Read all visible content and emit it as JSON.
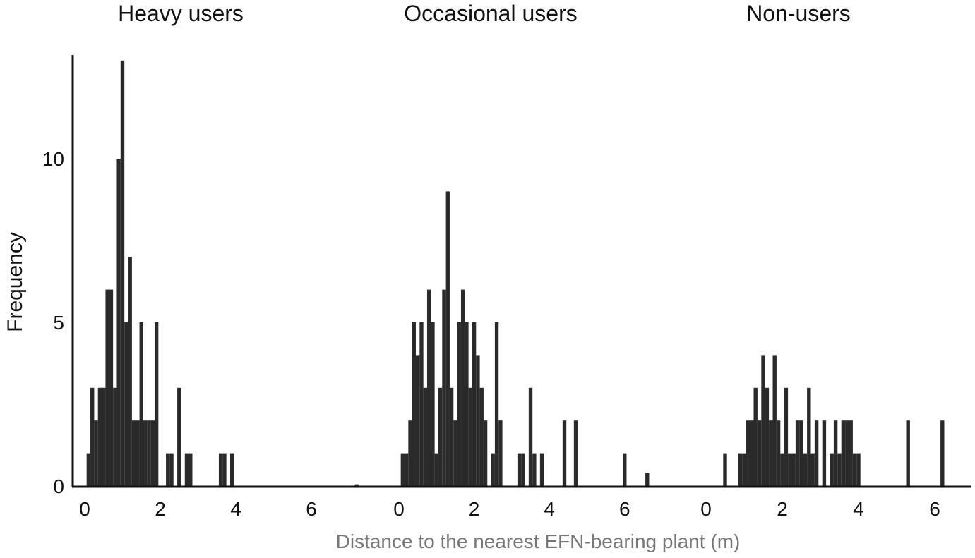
{
  "colors": {
    "bars": "#2a2a2a",
    "axis": "#111111",
    "x_axis_title": "#777777",
    "background": "#ffffff"
  },
  "chart_data": [
    {
      "type": "bar",
      "title": "Heavy users",
      "ylabel": "Frequency",
      "xlabel": "Distance to the nearest EFN-bearing plant (m)",
      "xlim": [
        -0.3,
        7.5
      ],
      "ylim": [
        0,
        13.2
      ],
      "xticks": [
        "0",
        "2",
        "4",
        "6"
      ],
      "yticks": [
        "0",
        "5",
        "10"
      ],
      "grid": false,
      "bins": [
        {
          "x": 0.1,
          "y": 1
        },
        {
          "x": 0.2,
          "y": 3
        },
        {
          "x": 0.3,
          "y": 2
        },
        {
          "x": 0.4,
          "y": 3
        },
        {
          "x": 0.5,
          "y": 3
        },
        {
          "x": 0.6,
          "y": 6
        },
        {
          "x": 0.7,
          "y": 6
        },
        {
          "x": 0.8,
          "y": 3
        },
        {
          "x": 0.9,
          "y": 10
        },
        {
          "x": 1.0,
          "y": 13
        },
        {
          "x": 1.1,
          "y": 5
        },
        {
          "x": 1.2,
          "y": 7
        },
        {
          "x": 1.3,
          "y": 2
        },
        {
          "x": 1.4,
          "y": 2
        },
        {
          "x": 1.5,
          "y": 5
        },
        {
          "x": 1.6,
          "y": 2
        },
        {
          "x": 1.7,
          "y": 2
        },
        {
          "x": 1.8,
          "y": 2
        },
        {
          "x": 1.9,
          "y": 5
        },
        {
          "x": 2.2,
          "y": 1
        },
        {
          "x": 2.3,
          "y": 1
        },
        {
          "x": 2.5,
          "y": 3
        },
        {
          "x": 2.7,
          "y": 1
        },
        {
          "x": 2.8,
          "y": 1
        },
        {
          "x": 3.6,
          "y": 1
        },
        {
          "x": 3.7,
          "y": 1
        },
        {
          "x": 3.9,
          "y": 1
        },
        {
          "x": 7.2,
          "y": 0.05
        }
      ]
    },
    {
      "type": "bar",
      "title": "Occasional users",
      "xlim": [
        -0.3,
        7.5
      ],
      "xticks": [
        "0",
        "2",
        "4",
        "6"
      ],
      "bins": [
        {
          "x": 0.1,
          "y": 1
        },
        {
          "x": 0.2,
          "y": 1
        },
        {
          "x": 0.3,
          "y": 2
        },
        {
          "x": 0.4,
          "y": 5
        },
        {
          "x": 0.5,
          "y": 4
        },
        {
          "x": 0.6,
          "y": 5
        },
        {
          "x": 0.7,
          "y": 3
        },
        {
          "x": 0.8,
          "y": 6
        },
        {
          "x": 0.9,
          "y": 5
        },
        {
          "x": 1.0,
          "y": 1
        },
        {
          "x": 1.1,
          "y": 3
        },
        {
          "x": 1.2,
          "y": 6
        },
        {
          "x": 1.3,
          "y": 9
        },
        {
          "x": 1.4,
          "y": 3
        },
        {
          "x": 1.5,
          "y": 2
        },
        {
          "x": 1.6,
          "y": 5
        },
        {
          "x": 1.7,
          "y": 6
        },
        {
          "x": 1.8,
          "y": 5
        },
        {
          "x": 1.9,
          "y": 3
        },
        {
          "x": 2.0,
          "y": 5
        },
        {
          "x": 2.1,
          "y": 4
        },
        {
          "x": 2.2,
          "y": 3
        },
        {
          "x": 2.3,
          "y": 2
        },
        {
          "x": 2.5,
          "y": 1
        },
        {
          "x": 2.6,
          "y": 5
        },
        {
          "x": 2.7,
          "y": 2
        },
        {
          "x": 3.2,
          "y": 1
        },
        {
          "x": 3.3,
          "y": 1
        },
        {
          "x": 3.5,
          "y": 3
        },
        {
          "x": 3.6,
          "y": 1
        },
        {
          "x": 3.8,
          "y": 1
        },
        {
          "x": 4.4,
          "y": 2
        },
        {
          "x": 4.7,
          "y": 2
        },
        {
          "x": 6.0,
          "y": 1
        },
        {
          "x": 6.6,
          "y": 0.4
        }
      ]
    },
    {
      "type": "bar",
      "title": "Non-users",
      "xlim": [
        -0.3,
        7.0
      ],
      "xticks": [
        "0",
        "2",
        "4",
        "6"
      ],
      "bins": [
        {
          "x": 0.5,
          "y": 1
        },
        {
          "x": 0.9,
          "y": 1
        },
        {
          "x": 1.0,
          "y": 1
        },
        {
          "x": 1.1,
          "y": 2
        },
        {
          "x": 1.2,
          "y": 2
        },
        {
          "x": 1.3,
          "y": 3
        },
        {
          "x": 1.4,
          "y": 2
        },
        {
          "x": 1.5,
          "y": 4
        },
        {
          "x": 1.6,
          "y": 3
        },
        {
          "x": 1.7,
          "y": 2
        },
        {
          "x": 1.8,
          "y": 4
        },
        {
          "x": 1.9,
          "y": 2
        },
        {
          "x": 2.0,
          "y": 1
        },
        {
          "x": 2.1,
          "y": 3
        },
        {
          "x": 2.2,
          "y": 1
        },
        {
          "x": 2.3,
          "y": 1
        },
        {
          "x": 2.4,
          "y": 2
        },
        {
          "x": 2.5,
          "y": 2
        },
        {
          "x": 2.6,
          "y": 1
        },
        {
          "x": 2.7,
          "y": 3
        },
        {
          "x": 2.8,
          "y": 1
        },
        {
          "x": 2.9,
          "y": 2
        },
        {
          "x": 3.1,
          "y": 2
        },
        {
          "x": 3.3,
          "y": 1
        },
        {
          "x": 3.4,
          "y": 2
        },
        {
          "x": 3.5,
          "y": 1
        },
        {
          "x": 3.6,
          "y": 2
        },
        {
          "x": 3.7,
          "y": 2
        },
        {
          "x": 3.8,
          "y": 2
        },
        {
          "x": 3.9,
          "y": 1
        },
        {
          "x": 4.0,
          "y": 1
        },
        {
          "x": 5.3,
          "y": 2
        },
        {
          "x": 6.2,
          "y": 2
        }
      ]
    }
  ]
}
